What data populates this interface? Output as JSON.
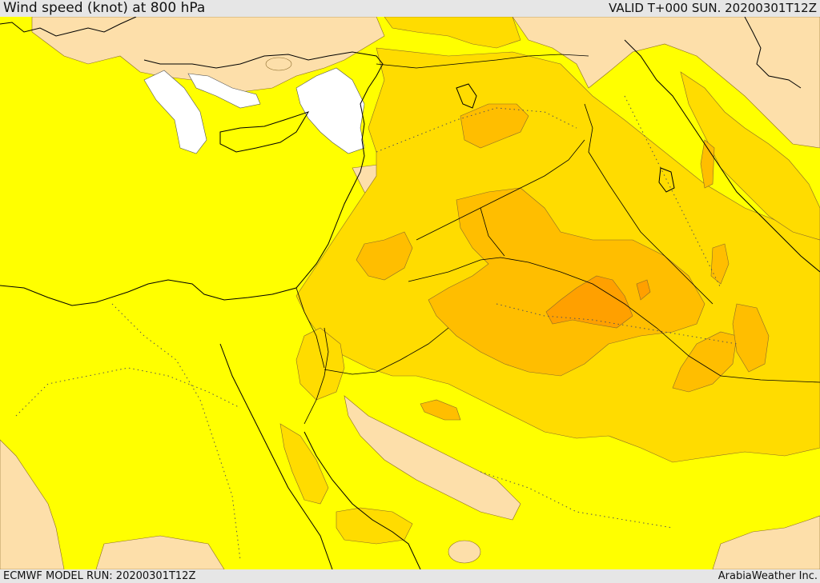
{
  "header": {
    "title": "Wind speed (knot) at 800 hPa",
    "valid": "VALID T+000 SUN. 20200301T12Z"
  },
  "footer": {
    "model_run": "ECMWF MODEL RUN: 20200301T12Z",
    "credit": "ArabiaWeather Inc."
  },
  "map": {
    "palette": {
      "calm": "#ffffff",
      "light": "#fddfaa",
      "base": "#ffff00",
      "moderate": "#ffdc00",
      "strong": "#ffbe00",
      "stronger": "#ffa000"
    },
    "icons": [
      "coastline",
      "country-border",
      "contour-line"
    ]
  }
}
